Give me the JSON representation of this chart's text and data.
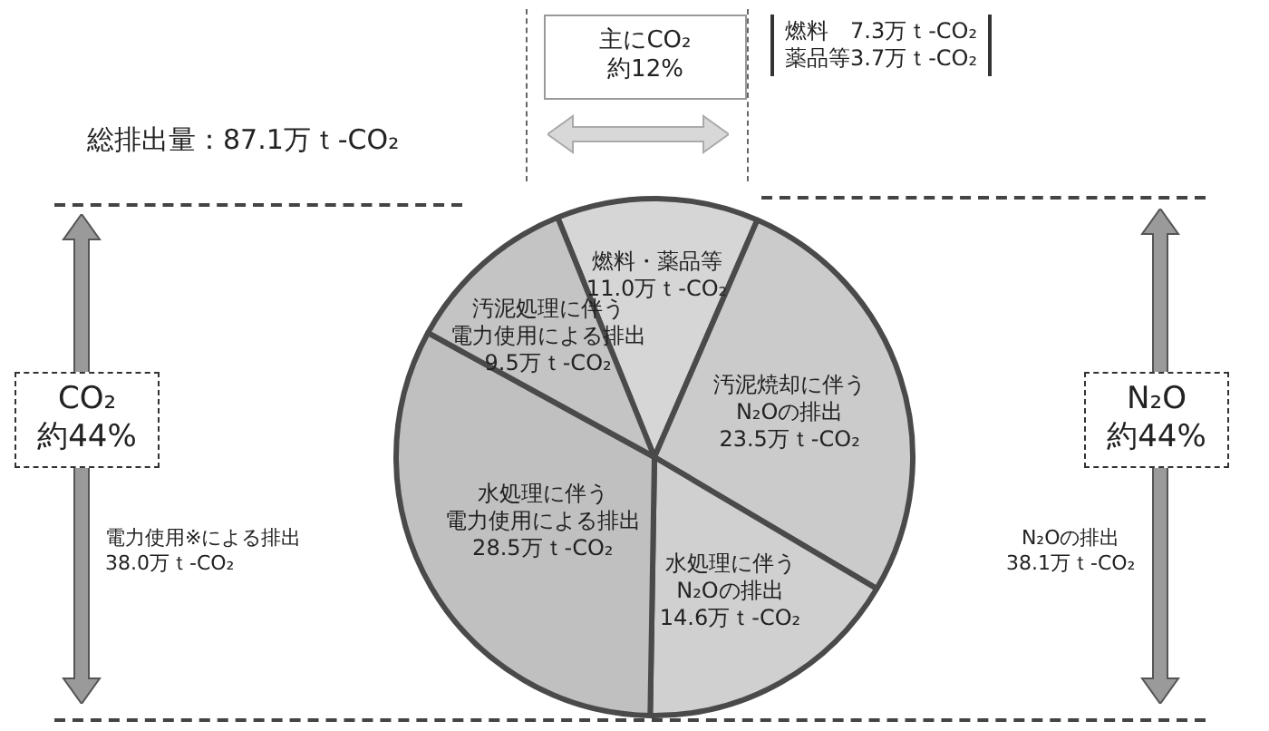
{
  "chart_data": {
    "type": "pie",
    "categories": [
      "燃料・薬品等",
      "汚泥焼却に伴うN₂Oの排出",
      "水処理に伴うN₂Oの排出",
      "水処理に伴う電力使用による排出",
      "汚泥処理に伴う電力使用による排出"
    ],
    "values": [
      11.0,
      23.5,
      14.6,
      28.5,
      9.5
    ],
    "value_labels": [
      "11.0万ｔ-CO₂",
      "23.5万ｔ-CO₂",
      "14.6万ｔ-CO₂",
      "28.5万ｔ-CO₂",
      "9.5万ｔ-CO₂"
    ],
    "colors": [
      "#d6d6d6",
      "#cbcbcb",
      "#d0d0d0",
      "#c0c0c0",
      "#c4c4c4"
    ],
    "legend": false,
    "annotations": [
      "総排出量：87.1万ｔ-CO₂",
      "主にCO₂\n約12%",
      "燃料　7.3万ｔ-CO₂\n薬品等3.7万ｔ-CO₂",
      "CO₂\n約44%",
      "電力使用※による排出\n38.0万ｔ-CO₂",
      "N₂O\n約44%",
      "N₂Oの排出\n38.1万ｔ-CO₂"
    ]
  }
}
